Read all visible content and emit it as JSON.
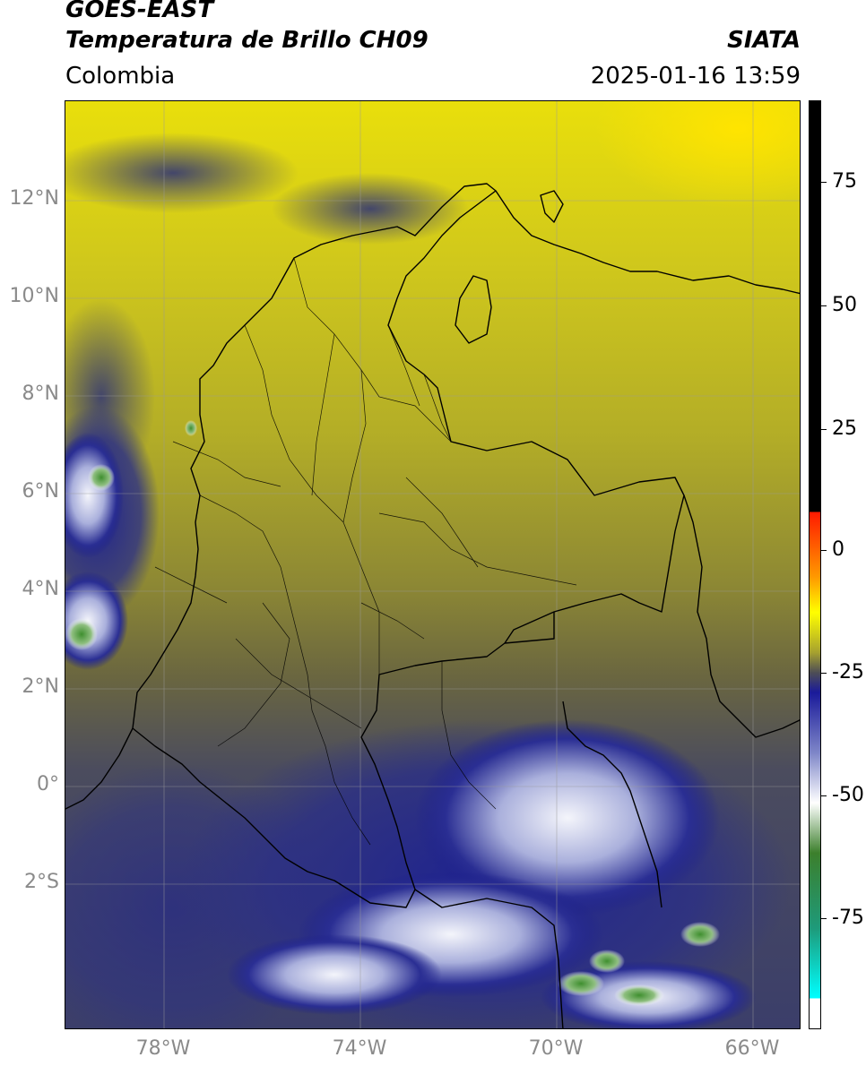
{
  "header": {
    "satellite": "GOES-EAST",
    "product": "Temperatura de Brillo CH09",
    "source": "SIATA",
    "region": "Colombia",
    "timestamp": "2025-01-16 13:59"
  },
  "map": {
    "lat_labels": [
      "12°N",
      "10°N",
      "8°N",
      "6°N",
      "4°N",
      "2°N",
      "0°",
      "2°S"
    ],
    "lon_labels": [
      "78°W",
      "74°W",
      "70°W",
      "66°W"
    ],
    "colors": {
      "warm_yellow": "#f6ec00",
      "olive": "#b5b12b",
      "dark_olive": "#6f6a3c",
      "slate": "#474a63",
      "navy": "#1c1f8a",
      "cloud_white": "#eef0f7",
      "green": "#3f8f2f"
    }
  },
  "colorbar": {
    "labels": [
      "75",
      "50",
      "25",
      "0",
      "-25",
      "-50",
      "-75"
    ],
    "stops": [
      {
        "value": 90,
        "color": "#000000"
      },
      {
        "value": 8,
        "color": "#000000"
      },
      {
        "value": 8,
        "color": "#ff1a00"
      },
      {
        "value": -5,
        "color": "#ff9a00"
      },
      {
        "value": -12,
        "color": "#ffff00"
      },
      {
        "value": -20,
        "color": "#a6a12f"
      },
      {
        "value": -24,
        "color": "#4e4e55"
      },
      {
        "value": -28,
        "color": "#1a1a9a"
      },
      {
        "value": -40,
        "color": "#7e86c8"
      },
      {
        "value": -50,
        "color": "#ffffff"
      },
      {
        "value": -60,
        "color": "#3c7f2c"
      },
      {
        "value": -75,
        "color": "#1e9a7a"
      },
      {
        "value": -89,
        "color": "#00ffff"
      },
      {
        "value": -89,
        "color": "#ffffff"
      },
      {
        "value": -95,
        "color": "#ffffff"
      }
    ]
  }
}
